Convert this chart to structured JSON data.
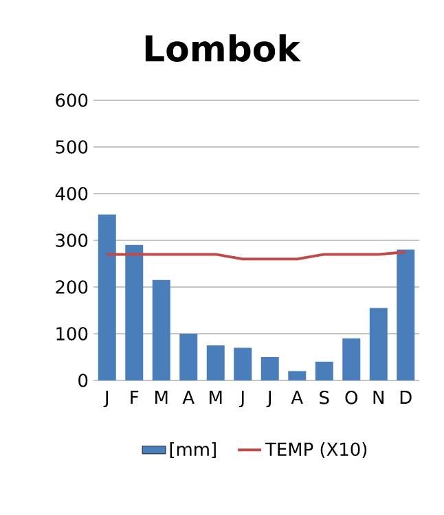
{
  "chart_data": {
    "type": "bar",
    "title": "Lombok",
    "categories": [
      "J",
      "F",
      "M",
      "A",
      "M",
      "J",
      "J",
      "A",
      "S",
      "O",
      "N",
      "D"
    ],
    "series": [
      {
        "name": "[mm]",
        "color": "#4a7ebb",
        "values": [
          355,
          290,
          215,
          100,
          75,
          70,
          50,
          20,
          40,
          90,
          155,
          280
        ]
      },
      {
        "name": "TEMP (X10)",
        "type": "line",
        "color": "#be4b48",
        "values": [
          270,
          270,
          270,
          270,
          270,
          260,
          260,
          260,
          270,
          270,
          270,
          275
        ]
      }
    ],
    "ylim": [
      0,
      600
    ],
    "yticks": [
      0,
      100,
      200,
      300,
      400,
      500,
      600
    ],
    "grid": "y",
    "legend": "bottom"
  }
}
